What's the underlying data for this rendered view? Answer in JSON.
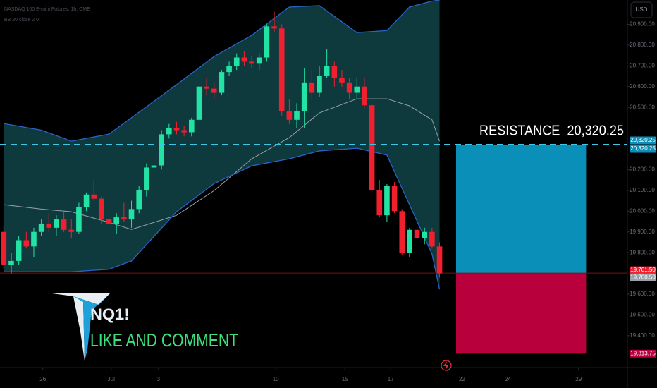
{
  "chart_data": {
    "type": "candlestick",
    "title": "NASDAQ 100 E-mini Futures, 1h, CME",
    "subtitle": "BB 20 close 2 0",
    "currency": "USD",
    "up_color": "#22e3a3",
    "down_color": "#f0202f",
    "band_color": "#a9b6b8",
    "band_fill": "#0e3a3e",
    "ylim": [
      19250,
      21017
    ],
    "xlim": [
      -0.5,
      83
    ],
    "yticks": [
      {
        "value": 20900,
        "label": "20,900.00"
      },
      {
        "value": 20800,
        "label": "20,800.00"
      },
      {
        "value": 20700,
        "label": "20,700.00"
      },
      {
        "value": 20600,
        "label": "20,600.00"
      },
      {
        "value": 20500,
        "label": "20,500.00"
      },
      {
        "value": 20200,
        "label": "20,200.00"
      },
      {
        "value": 20100,
        "label": "20,100.00"
      },
      {
        "value": 20000,
        "label": "20,000.00"
      },
      {
        "value": 19900,
        "label": "19,900.00"
      },
      {
        "value": 19800,
        "label": "19,800.00"
      },
      {
        "value": 19600,
        "label": "19,600.00"
      },
      {
        "value": 19500,
        "label": "19,500.00"
      },
      {
        "value": 19400,
        "label": "19,400.00"
      }
    ],
    "xticks": [
      {
        "value": 5.2,
        "label": "26"
      },
      {
        "value": 14.3,
        "label": "Jul"
      },
      {
        "value": 20.6,
        "label": "3"
      },
      {
        "value": 36.2,
        "label": "10"
      },
      {
        "value": 45.4,
        "label": "15"
      },
      {
        "value": 51.5,
        "label": "17"
      },
      {
        "value": 61,
        "label": "22"
      },
      {
        "value": 67.1,
        "label": "24"
      },
      {
        "value": 76.5,
        "label": "29"
      }
    ],
    "candles": [
      [
        19900,
        19930,
        19720,
        19740
      ],
      [
        19740,
        19800,
        19700,
        19760
      ],
      [
        19760,
        19880,
        19740,
        19860
      ],
      [
        19860,
        19900,
        19820,
        19830
      ],
      [
        19830,
        19920,
        19780,
        19900
      ],
      [
        19900,
        19960,
        19880,
        19940
      ],
      [
        19940,
        19990,
        19900,
        19920
      ],
      [
        19920,
        19980,
        19880,
        19960
      ],
      [
        19960,
        20000,
        19900,
        19910
      ],
      [
        19910,
        19960,
        19870,
        19900
      ],
      [
        19900,
        20040,
        19890,
        20020
      ],
      [
        20020,
        20090,
        20000,
        20080
      ],
      [
        20080,
        20150,
        20050,
        20060
      ],
      [
        20060,
        20070,
        19940,
        19960
      ],
      [
        19960,
        20000,
        19920,
        19940
      ],
      [
        19940,
        19990,
        19890,
        19970
      ],
      [
        19970,
        20040,
        19950,
        19960
      ],
      [
        19960,
        20050,
        19920,
        20010
      ],
      [
        20010,
        20120,
        19990,
        20100
      ],
      [
        20100,
        20230,
        20070,
        20210
      ],
      [
        20210,
        20260,
        20180,
        20220
      ],
      [
        20220,
        20390,
        20200,
        20370
      ],
      [
        20370,
        20420,
        20350,
        20400
      ],
      [
        20400,
        20430,
        20370,
        20390
      ],
      [
        20390,
        20410,
        20360,
        20380
      ],
      [
        20380,
        20450,
        20360,
        20440
      ],
      [
        20440,
        20610,
        20420,
        20600
      ],
      [
        20600,
        20640,
        20560,
        20590
      ],
      [
        20590,
        20620,
        20540,
        20570
      ],
      [
        20570,
        20680,
        20560,
        20670
      ],
      [
        20670,
        20720,
        20650,
        20700
      ],
      [
        20700,
        20760,
        20680,
        20740
      ],
      [
        20740,
        20770,
        20700,
        20720
      ],
      [
        20720,
        20750,
        20690,
        20710
      ],
      [
        20710,
        20760,
        20680,
        20740
      ],
      [
        20740,
        20900,
        20720,
        20890
      ],
      [
        20890,
        20960,
        20860,
        20880
      ],
      [
        20880,
        20900,
        20460,
        20480
      ],
      [
        20480,
        20540,
        20420,
        20440
      ],
      [
        20440,
        20520,
        20400,
        20480
      ],
      [
        20480,
        20690,
        20400,
        20620
      ],
      [
        20620,
        20680,
        20540,
        20570
      ],
      [
        20570,
        20700,
        20550,
        20650
      ],
      [
        20650,
        20780,
        20640,
        20700
      ],
      [
        20700,
        20720,
        20600,
        20640
      ],
      [
        20640,
        20680,
        20600,
        20620
      ],
      [
        20620,
        20640,
        20540,
        20570
      ],
      [
        20570,
        20640,
        20540,
        20600
      ],
      [
        20600,
        20640,
        20500,
        20510
      ],
      [
        20510,
        20520,
        20080,
        20100
      ],
      [
        20100,
        20150,
        19970,
        19980
      ],
      [
        19980,
        20130,
        19950,
        20120
      ],
      [
        20120,
        20140,
        19990,
        20000
      ],
      [
        20000,
        20010,
        19790,
        19800
      ],
      [
        19800,
        19920,
        19780,
        19910
      ],
      [
        19910,
        19940,
        19860,
        19870
      ],
      [
        19870,
        19920,
        19840,
        19900
      ],
      [
        19900,
        19920,
        19820,
        19830
      ],
      [
        19830,
        19850,
        19680,
        19700
      ]
    ],
    "bands": {
      "x": [
        0,
        5,
        9,
        14,
        17,
        23,
        28,
        33,
        38,
        42,
        47,
        51,
        54,
        57,
        58
      ],
      "upper": [
        20422,
        20390,
        20337,
        20371,
        20450,
        20609,
        20745,
        20847,
        20983,
        20990,
        20860,
        20870,
        20983,
        21012,
        21017
      ],
      "middle": [
        20031,
        20010,
        19997,
        19946,
        19912,
        19980,
        20099,
        20252,
        20354,
        20473,
        20541,
        20541,
        20507,
        20440,
        20337
      ],
      "lower": [
        19708,
        19708,
        19708,
        19720,
        19760,
        19997,
        20133,
        20218,
        20252,
        20290,
        20303,
        20270,
        20031,
        19793,
        19623
      ]
    },
    "resistance": {
      "label": "RESISTANCE  20,320.25",
      "value": 20320.25,
      "color": "#3ec8e8"
    },
    "position": {
      "target": 20320.25,
      "entry": 19701.5,
      "stop": 19313.75,
      "x": [
        60.2,
        77.5
      ],
      "target_color": "#0a8fb8",
      "stop_color": "#b8003c"
    },
    "price_labels": [
      {
        "value": 20320.25,
        "label": "20,320.25",
        "color": "#0a8fb8"
      },
      {
        "value": 20320.25,
        "label": "20,320.25",
        "color": "#0a8fb8"
      },
      {
        "value": 19701.5,
        "label": "19,701.50",
        "color": "#f0202f"
      },
      {
        "value": 19700.5,
        "label": "19,700.50",
        "color": "#9aa0a8"
      },
      {
        "value": 19313.75,
        "label": "19,313.75",
        "color": "#b8003c"
      }
    ],
    "brand": {
      "symbol": "NQ1!",
      "call": "LIKE AND COMMENT"
    }
  }
}
